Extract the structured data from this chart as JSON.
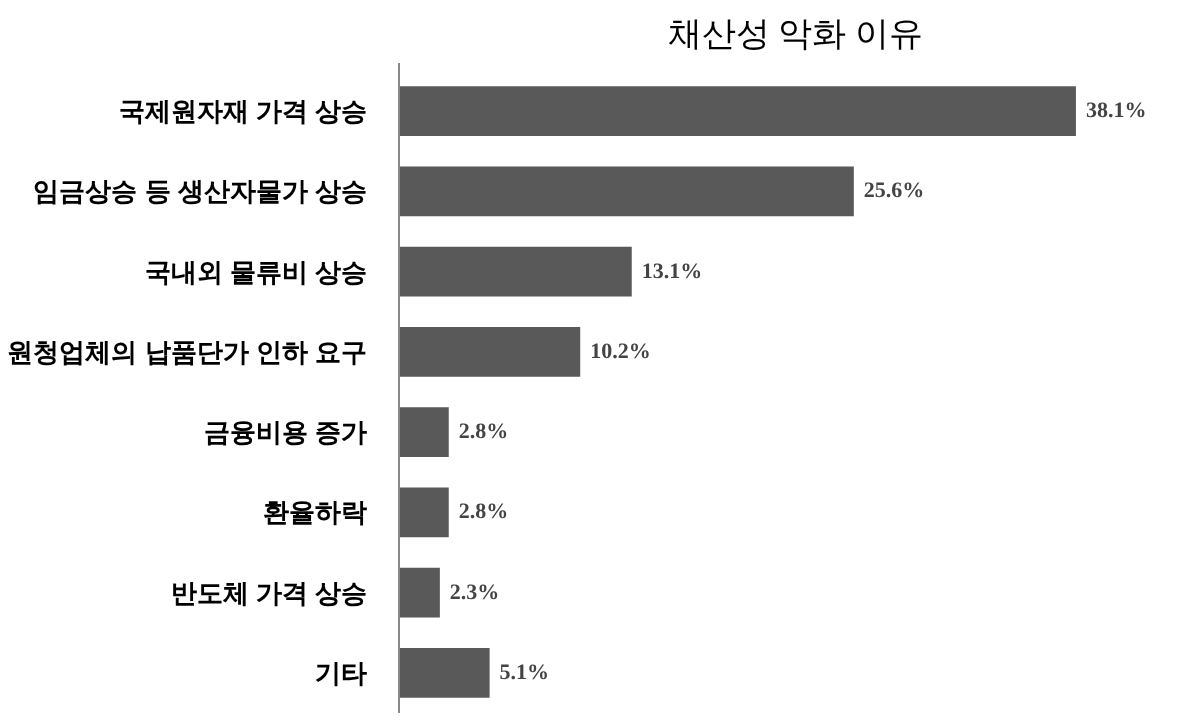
{
  "chart_data": {
    "type": "bar",
    "orientation": "horizontal",
    "title": "채산성 악화 이유",
    "categories": [
      "국제원자재 가격 상승",
      "임금상승 등 생산자물가 상승",
      "국내외 물류비 상승",
      "원청업체의 납품단가 인하 요구",
      "금융비용 증가",
      "환율하락",
      "반도체 가격 상승",
      "기타"
    ],
    "values": [
      38.1,
      25.6,
      13.1,
      10.2,
      2.8,
      2.8,
      2.3,
      5.1
    ],
    "color": "#595959",
    "data_labels": true,
    "value_labels": [
      "38.1%",
      "25.6%",
      "13.1%",
      "10.2%",
      "2.8%",
      "2.8%",
      "2.3%",
      "5.1%"
    ],
    "grid": false
  }
}
